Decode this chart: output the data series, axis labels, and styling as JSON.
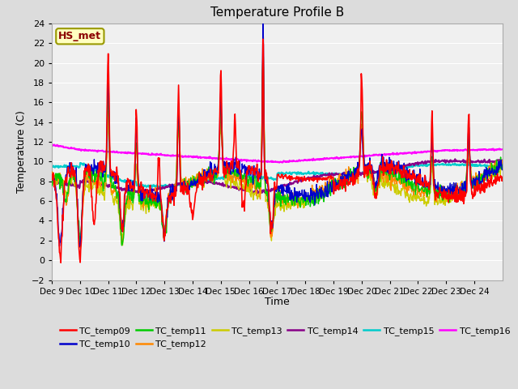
{
  "title": "Temperature Profile B",
  "xlabel": "Time",
  "ylabel": "Temperature (C)",
  "xlim": [
    0,
    16
  ],
  "ylim": [
    -2,
    24
  ],
  "yticks": [
    -2,
    0,
    2,
    4,
    6,
    8,
    10,
    12,
    14,
    16,
    18,
    20,
    22,
    24
  ],
  "xtick_labels": [
    "Dec 9",
    "Dec 10",
    "Dec 11",
    "Dec 12",
    "Dec 13",
    "Dec 14",
    "Dec 15",
    "Dec 16",
    "Dec 17",
    "Dec 18",
    "Dec 19",
    "Dec 20",
    "Dec 21",
    "Dec 22",
    "Dec 23",
    "Dec 24"
  ],
  "annotation_text": "HS_met",
  "annotation_color": "#8B0000",
  "annotation_bg": "#FFFFC0",
  "annotation_border": "#999900",
  "series_colors": {
    "TC_temp09": "#FF0000",
    "TC_temp10": "#0000CC",
    "TC_temp11": "#00CC00",
    "TC_temp12": "#FF8800",
    "TC_temp13": "#CCCC00",
    "TC_temp14": "#880088",
    "TC_temp15": "#00CCCC",
    "TC_temp16": "#FF00FF"
  },
  "legend_order": [
    "TC_temp09",
    "TC_temp10",
    "TC_temp11",
    "TC_temp12",
    "TC_temp13",
    "TC_temp14",
    "TC_temp15",
    "TC_temp16"
  ],
  "bg_color": "#DCDCDC",
  "plot_bg": "#F0F0F0",
  "grid_color": "#FFFFFF"
}
